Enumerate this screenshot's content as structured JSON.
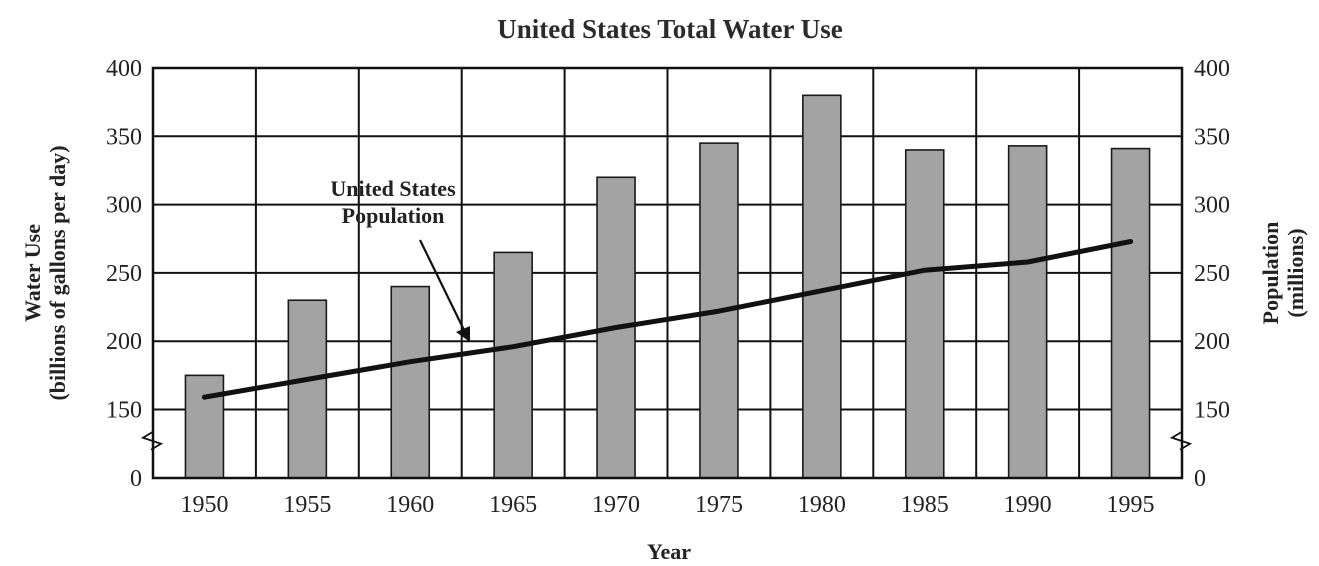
{
  "chart_data": {
    "type": "bar",
    "title": "United States Total Water Use",
    "xlabel": "Year",
    "ylabel_left_line1": "Water Use",
    "ylabel_left_line2": "(billions of gallons per day)",
    "ylabel_right_line1": "Population",
    "ylabel_right_line2": "(millions)",
    "categories": [
      "1950",
      "1955",
      "1960",
      "1965",
      "1970",
      "1975",
      "1980",
      "1985",
      "1990",
      "1995"
    ],
    "y_ticks": [
      "0",
      "150",
      "200",
      "250",
      "300",
      "350",
      "400"
    ],
    "y_axis_break": true,
    "ylim": [
      0,
      400
    ],
    "grid": true,
    "series": [
      {
        "name": "Water Use",
        "kind": "bar",
        "color": "#a3a3a3",
        "values": [
          175,
          230,
          240,
          265,
          320,
          345,
          380,
          340,
          343,
          341
        ]
      },
      {
        "name": "United States Population",
        "kind": "line",
        "color": "#111111",
        "values": [
          159,
          172,
          185,
          196,
          210,
          222,
          237,
          252,
          258,
          273
        ]
      }
    ],
    "annotation": {
      "line1": "United States",
      "line2": "Population"
    }
  }
}
